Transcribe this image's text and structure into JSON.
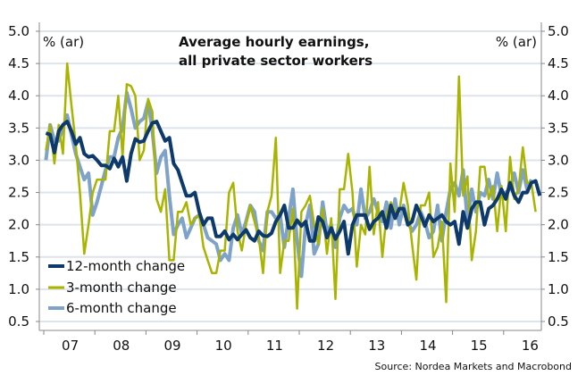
{
  "chart_data": {
    "type": "line",
    "title": [
      "Average hourly earnings,",
      "all private sector workers"
    ],
    "ylabel_left": "% (ar)",
    "ylabel_right": "% (ar)",
    "ylim": [
      0.5,
      5.0
    ],
    "yticks": [
      "5.0",
      "4.5",
      "4.0",
      "3.5",
      "3.0",
      "2.5",
      "2.0",
      "1.5",
      "1.0",
      "0.5"
    ],
    "xticks": [
      "07",
      "08",
      "09",
      "10",
      "11",
      "12",
      "13",
      "14",
      "15",
      "16"
    ],
    "x_frequency": "monthly",
    "grid": true,
    "legend_position": "bottom-left",
    "source": "Source: Nordea Markets and Macrobond",
    "series": [
      {
        "name": "12-month change",
        "color": "#0d3a6a",
        "values": {
          "2007": [
            3.42,
            3.4,
            3.12,
            3.45,
            3.55,
            3.6,
            3.45,
            3.25,
            3.35,
            3.1,
            3.05,
            3.07
          ],
          "2008": [
            3.0,
            2.92,
            2.92,
            2.87,
            3.03,
            2.9,
            3.05,
            2.68,
            3.1,
            3.33,
            3.28,
            3.3
          ],
          "2009": [
            3.45,
            3.58,
            3.6,
            3.45,
            3.3,
            3.35,
            2.95,
            2.85,
            2.65,
            2.45,
            2.45,
            2.5
          ],
          "2010": [
            2.2,
            2.0,
            2.1,
            2.1,
            1.82,
            1.82,
            1.9,
            1.77,
            1.85,
            1.77,
            1.85,
            1.92
          ],
          "2011": [
            1.8,
            1.75,
            1.9,
            1.83,
            1.82,
            1.87,
            2.05,
            2.15,
            2.3,
            1.95,
            1.95,
            2.07
          ],
          "2012": [
            1.98,
            2.05,
            1.75,
            1.75,
            2.12,
            2.05,
            1.8,
            1.95,
            1.78,
            1.9,
            2.05,
            1.55
          ],
          "2013": [
            2.0,
            2.15,
            2.15,
            2.15,
            1.93,
            2.05,
            2.1,
            2.2,
            1.95,
            2.3,
            2.1,
            2.25
          ],
          "2014": [
            2.25,
            2.0,
            2.05,
            2.3,
            2.15,
            1.98,
            2.15,
            2.05,
            2.1,
            2.15,
            2.05,
            2.0
          ],
          "2015": [
            2.05,
            1.7,
            2.2,
            1.95,
            2.25,
            2.35,
            2.35,
            2.0,
            2.25,
            2.3,
            2.4,
            2.55
          ],
          "2016": [
            2.4,
            2.65,
            2.45,
            2.35,
            2.5,
            2.5,
            2.65,
            2.68,
            2.45
          ]
        }
      },
      {
        "name": "3-month change",
        "color": "#a8b400",
        "values": {
          "2007": [
            3.15,
            3.55,
            2.95,
            3.55,
            3.1,
            4.5,
            3.85,
            3.25,
            2.5,
            1.55,
            2.0,
            2.5
          ],
          "2008": [
            2.7,
            2.7,
            2.7,
            3.45,
            3.45,
            4.0,
            3.05,
            4.18,
            4.15,
            4.0,
            3.0,
            3.15
          ],
          "2009": [
            3.95,
            3.75,
            2.4,
            2.2,
            2.55,
            1.45,
            1.45,
            2.2,
            2.2,
            2.35,
            2.0,
            2.1
          ],
          "2010": [
            2.15,
            1.65,
            1.45,
            1.25,
            1.25,
            1.6,
            1.6,
            2.5,
            2.65,
            1.9,
            1.6,
            2.0
          ],
          "2011": [
            2.3,
            2.05,
            1.8,
            1.25,
            2.2,
            2.45,
            3.35,
            1.25,
            1.75,
            1.75,
            2.25,
            0.7
          ],
          "2012": [
            2.2,
            2.3,
            2.45,
            2.0,
            1.7,
            2.25,
            1.55,
            2.1,
            0.85,
            2.55,
            2.55,
            3.1
          ],
          "2013": [
            2.5,
            1.35,
            2.0,
            1.85,
            2.9,
            1.85,
            2.35,
            1.5,
            2.15,
            2.35,
            2.2,
            2.2
          ],
          "2014": [
            2.65,
            2.3,
            1.7,
            1.15,
            2.3,
            2.3,
            2.5,
            1.5,
            1.65,
            2.05,
            0.8,
            2.95
          ],
          "2015": [
            2.2,
            4.3,
            2.45,
            2.75,
            1.45,
            1.9,
            2.9,
            2.9,
            2.4,
            2.6,
            1.9,
            2.6
          ],
          "2016": [
            1.9,
            3.05,
            2.4,
            2.55,
            3.2,
            2.65,
            2.65,
            2.2
          ]
        }
      },
      {
        "name": "6-month change",
        "color": "#7ea2c8",
        "values": {
          "2007": [
            3.0,
            3.55,
            3.3,
            3.3,
            3.5,
            3.7,
            3.4,
            3.1,
            2.9,
            2.7,
            2.8,
            2.15
          ],
          "2008": [
            2.35,
            2.6,
            2.85,
            3.05,
            3.05,
            3.35,
            3.5,
            4.05,
            3.8,
            3.5,
            3.6,
            3.65
          ],
          "2009": [
            3.9,
            3.45,
            2.8,
            3.05,
            3.15,
            2.45,
            1.85,
            2.0,
            2.1,
            1.8,
            1.95,
            2.1
          ],
          "2010": [
            2.15,
            2.0,
            1.8,
            1.75,
            1.7,
            1.45,
            1.55,
            1.45,
            1.95,
            2.15,
            1.85,
            2.05
          ],
          "2011": [
            2.3,
            2.2,
            1.75,
            1.6,
            2.2,
            2.2,
            2.1,
            2.15,
            1.65,
            2.1,
            2.55,
            1.75
          ],
          "2012": [
            1.2,
            2.0,
            2.3,
            1.55,
            1.7,
            2.35,
            1.9,
            2.0,
            1.65,
            2.1,
            2.3,
            2.2
          ],
          "2013": [
            2.25,
            2.0,
            2.55,
            2.1,
            2.2,
            2.4,
            2.2,
            2.05,
            2.35,
            1.95,
            2.4,
            2.0
          ],
          "2014": [
            2.3,
            2.05,
            1.9,
            2.0,
            2.2,
            2.05,
            1.8,
            1.9,
            2.3,
            1.75,
            2.2,
            2.55
          ],
          "2015": [
            2.65,
            2.45,
            2.85,
            2.05,
            2.55,
            2.2,
            2.5,
            2.45,
            2.7,
            2.4,
            2.8,
            2.45
          ],
          "2016": [
            2.5,
            2.55,
            2.8,
            2.5,
            2.85,
            2.55,
            2.7
          ]
        }
      }
    ]
  }
}
